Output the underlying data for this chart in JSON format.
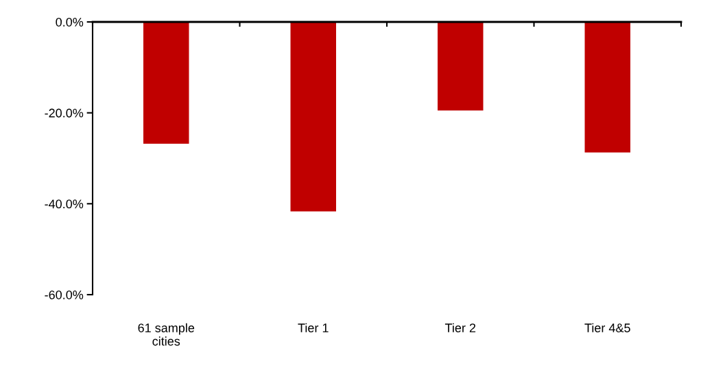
{
  "chart_data": {
    "type": "bar",
    "categories": [
      "61 sample\ncities",
      "Tier 1",
      "Tier 2",
      "Tier 4&5"
    ],
    "values": [
      -26.8,
      -41.7,
      -19.5,
      -28.7
    ],
    "color": "#c00000",
    "ylim": [
      -60,
      0
    ],
    "yticks": [
      {
        "value": 0,
        "label": "0.0%"
      },
      {
        "value": -20,
        "label": "-20.0%"
      },
      {
        "value": -40,
        "label": "-40.0%"
      },
      {
        "value": -60,
        "label": "-60.0%"
      }
    ],
    "grid": false
  }
}
